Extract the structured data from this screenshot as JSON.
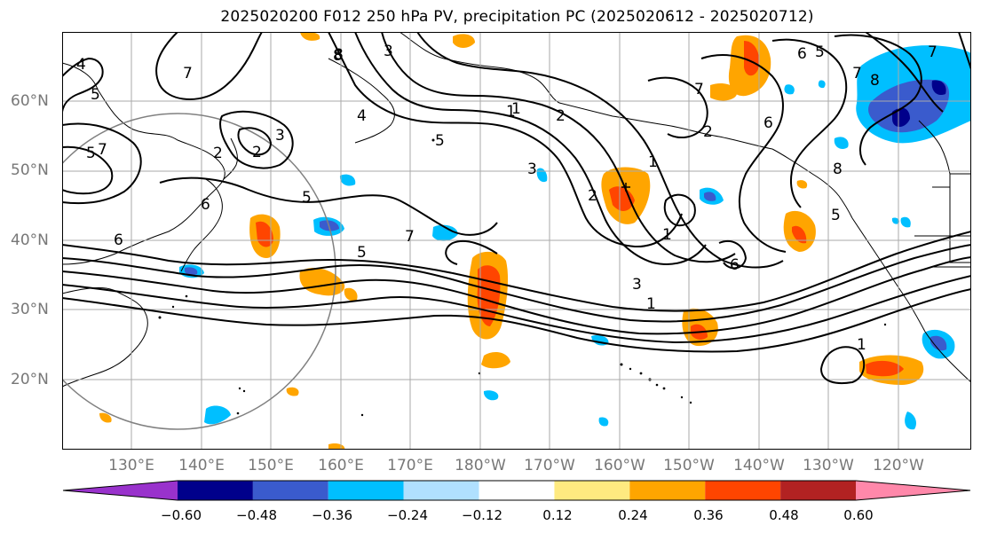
{
  "title": "2025020200 F012 250 hPa PV, precipitation PC (2025020612 - 2025020712)",
  "lat_labels": [
    "60°N",
    "50°N",
    "40°N",
    "30°N",
    "20°N"
  ],
  "lon_labels": [
    "130°E",
    "140°E",
    "150°E",
    "160°E",
    "170°E",
    "180°W",
    "170°W",
    "160°W",
    "150°W",
    "140°W",
    "130°W",
    "120°W"
  ],
  "colorbar": {
    "ticks": [
      "−0.60",
      "−0.48",
      "−0.36",
      "−0.24",
      "−0.12",
      "0.12",
      "0.24",
      "0.36",
      "0.48",
      "0.60"
    ],
    "colors": [
      "#9932cc",
      "#00008b",
      "#3a5bcd",
      "#00bfff",
      "#b0e0ff",
      "#ffffff",
      "#ffea80",
      "#ffa500",
      "#ff4500",
      "#b22222",
      "#ff88aa"
    ]
  },
  "contour_labels": [
    "4",
    "5",
    "7",
    "8",
    "3",
    "4",
    "5",
    "1",
    "2",
    "5",
    "2",
    "7",
    "3",
    "2",
    "6",
    "6",
    "5",
    "7",
    "3",
    "1",
    "2",
    "7",
    "1",
    "3",
    "2",
    "1",
    "7",
    "8",
    "6",
    "7",
    "5",
    "1",
    "8",
    "6",
    "6",
    "8",
    "5",
    "5",
    "1"
  ]
}
